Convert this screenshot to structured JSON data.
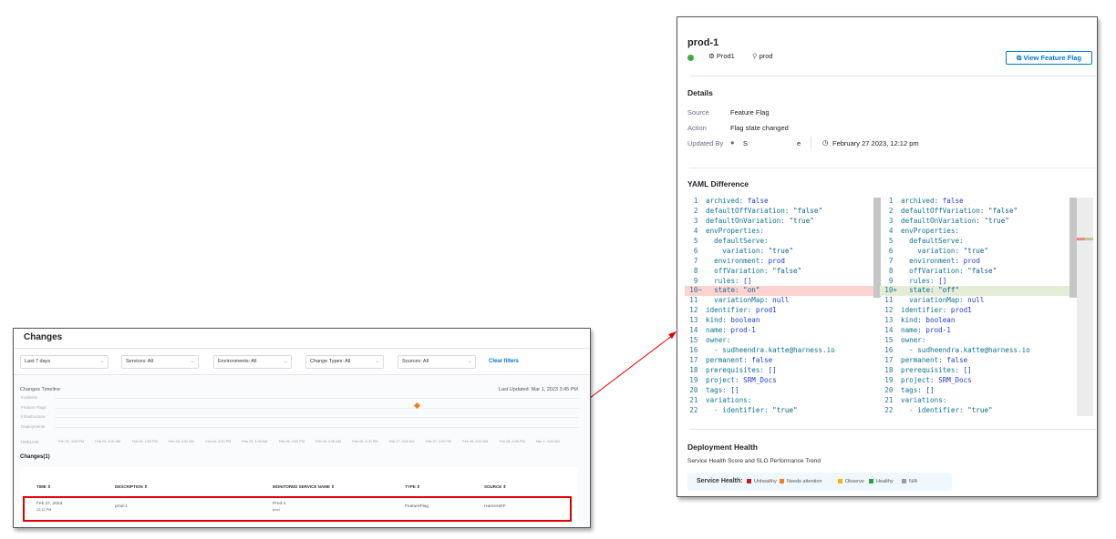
{
  "changes_panel": {
    "title": "Changes",
    "filters": [
      {
        "label": "Last 7 days"
      },
      {
        "label": "Services: All"
      },
      {
        "label": "Environments: All"
      },
      {
        "label": "Change Types: All"
      },
      {
        "label": "Sources: All"
      }
    ],
    "clear_filters": "Clear filters",
    "timeline_title": "Changes Timeline",
    "last_updated": "Last Updated: Mar 1, 2023 3:45 PM",
    "lanes": [
      "Incidents",
      "Feature Flags",
      "Infrastructure",
      "Deployments"
    ],
    "timeline_label": "TIMELINE",
    "ticks": [
      "Feb 22, 4:00 PM",
      "Feb 23, 4:00 AM",
      "Feb 23, 4:00 PM",
      "Feb 24, 4:00 AM",
      "Feb 24, 4:00 PM",
      "Feb 25, 4:00 AM",
      "Feb 25, 4:00 PM",
      "Feb 26, 4:00 AM",
      "Feb 26, 4:00 PM",
      "Feb 27, 4:00 AM",
      "Feb 27, 4:00 PM",
      "Feb 28, 4:00 AM",
      "Feb 28, 4:00 PM",
      "Mar 1, 4:00 AM"
    ],
    "marker_color": "#f57c1f",
    "changes_count": "Changes(1)",
    "columns": [
      "TIME",
      "DESCRIPTION",
      "MONITORED SERVICE NAME",
      "TYPE",
      "SOURCE"
    ],
    "rows": [
      {
        "date": "Feb 27, 2023",
        "time": "12:12 PM",
        "description": "prod-1",
        "service": "Prod-1",
        "env": "prod",
        "type": "FeatureFlag",
        "source": "HarnessFF"
      }
    ]
  },
  "detail_panel": {
    "title": "prod-1",
    "status_color": "#42ab45",
    "service": "Prod1",
    "environment": "prod",
    "view_button": "View Feature Flag",
    "details_heading": "Details",
    "source_label": "Source",
    "source_value": "Feature Flag",
    "action_label": "Action",
    "action_value": "Flag state changed",
    "updated_by_label": "Updated By",
    "updated_by_start": "S",
    "updated_by_end": "e",
    "updated_at": "February 27 2023, 12:12 pm",
    "yaml_heading": "YAML Difference",
    "deploy_heading": "Deployment Health",
    "deploy_sub": "Service Health Score and SLO Performance Trend",
    "health_label": "Service Health:",
    "health_legend": [
      {
        "label": "Unhealthy",
        "color": "#c41e1e"
      },
      {
        "label": "Needs attention",
        "color": "#f57c1f"
      },
      {
        "label": "Observe",
        "color": "#f5b400"
      },
      {
        "label": "Healthy",
        "color": "#2e9e3a"
      },
      {
        "label": "N/A",
        "color": "#9899b0"
      }
    ]
  },
  "yaml_left": [
    [
      "0",
      "archived",
      "false"
    ],
    [
      "0",
      "defaultOffVariation",
      "\"false\""
    ],
    [
      "0",
      "defaultOnVariation",
      "\"true\""
    ],
    [
      "0",
      "envProperties",
      ""
    ],
    [
      "1",
      "defaultServe",
      ""
    ],
    [
      "2",
      "variation",
      "\"true\""
    ],
    [
      "1",
      "environment",
      "prod"
    ],
    [
      "1",
      "offVariation",
      "\"false\""
    ],
    [
      "1",
      "rules",
      "[]"
    ],
    [
      "1",
      "state",
      "\"on\""
    ],
    [
      "1",
      "variationMap",
      "null"
    ],
    [
      "0",
      "identifier",
      "prod1"
    ],
    [
      "0",
      "kind",
      "boolean"
    ],
    [
      "0",
      "name",
      "prod-1"
    ],
    [
      "0",
      "owner",
      ""
    ],
    [
      "1",
      "- sudheendra.katte@harness.io",
      ""
    ],
    [
      "0",
      "permanent",
      "false"
    ],
    [
      "0",
      "prerequisites",
      "[]"
    ],
    [
      "0",
      "project",
      "SRM_Docs"
    ],
    [
      "0",
      "tags",
      "[]"
    ],
    [
      "0",
      "variations",
      ""
    ],
    [
      "1",
      "- identifier",
      "\"true\""
    ]
  ],
  "yaml_right": [
    [
      "0",
      "archived",
      "false"
    ],
    [
      "0",
      "defaultOffVariation",
      "\"false\""
    ],
    [
      "0",
      "defaultOnVariation",
      "\"true\""
    ],
    [
      "0",
      "envProperties",
      ""
    ],
    [
      "1",
      "defaultServe",
      ""
    ],
    [
      "2",
      "variation",
      "\"true\""
    ],
    [
      "1",
      "environment",
      "prod"
    ],
    [
      "1",
      "offVariation",
      "\"false\""
    ],
    [
      "1",
      "rules",
      "[]"
    ],
    [
      "1",
      "state",
      "\"off\""
    ],
    [
      "1",
      "variationMap",
      "null"
    ],
    [
      "0",
      "identifier",
      "prod1"
    ],
    [
      "0",
      "kind",
      "boolean"
    ],
    [
      "0",
      "name",
      "prod-1"
    ],
    [
      "0",
      "owner",
      ""
    ],
    [
      "1",
      "- sudheendra.katte@harness.io",
      ""
    ],
    [
      "0",
      "permanent",
      "false"
    ],
    [
      "0",
      "prerequisites",
      "[]"
    ],
    [
      "0",
      "project",
      "SRM_Docs"
    ],
    [
      "0",
      "tags",
      "[]"
    ],
    [
      "0",
      "variations",
      ""
    ],
    [
      "1",
      "- identifier",
      "\"true\""
    ]
  ]
}
